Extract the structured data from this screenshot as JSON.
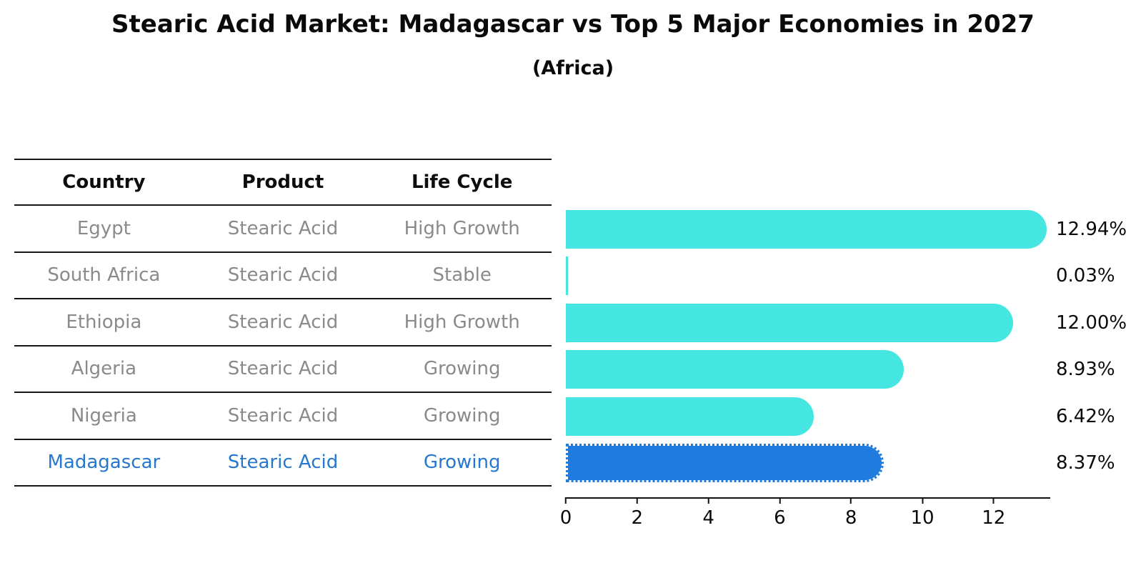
{
  "title": "Stearic Acid Market: Madagascar vs Top 5 Major Economies in 2027",
  "subtitle": "(Africa)",
  "table": {
    "headers": [
      "Country",
      "Product",
      "Life Cycle"
    ],
    "rows": [
      {
        "country": "Egypt",
        "product": "Stearic Acid",
        "life_cycle": "High Growth"
      },
      {
        "country": "South Africa",
        "product": "Stearic Acid",
        "life_cycle": "Stable"
      },
      {
        "country": "Ethiopia",
        "product": "Stearic Acid",
        "life_cycle": "High Growth"
      },
      {
        "country": "Algeria",
        "product": "Stearic Acid",
        "life_cycle": "Growing"
      },
      {
        "country": "Nigeria",
        "product": "Stearic Acid",
        "life_cycle": "Growing"
      },
      {
        "country": "Madagascar",
        "product": "Stearic Acid",
        "life_cycle": "Growing"
      }
    ]
  },
  "chart_data": {
    "type": "bar",
    "orientation": "horizontal",
    "title": "Stearic Acid Market: Madagascar vs Top 5 Major Economies in 2027 (Africa)",
    "categories": [
      "Egypt",
      "South Africa",
      "Ethiopia",
      "Algeria",
      "Nigeria",
      "Madagascar"
    ],
    "values": [
      12.94,
      0.03,
      12.0,
      8.93,
      6.42,
      8.37
    ],
    "value_labels": [
      "12.94%",
      "0.03%",
      "12.00%",
      "8.93%",
      "6.42%",
      "8.37%"
    ],
    "xticks": [
      "0",
      "2",
      "4",
      "6",
      "8",
      "10",
      "12"
    ],
    "xtick_values": [
      0,
      2,
      4,
      6,
      8,
      10,
      12
    ],
    "xlim": [
      0,
      13.6
    ],
    "highlight_index": 5,
    "bar_color": "#45e6e1",
    "highlight_color": "#1f7bdd",
    "highlight_text_color": "#2678cf",
    "grid": false,
    "legend": false
  }
}
